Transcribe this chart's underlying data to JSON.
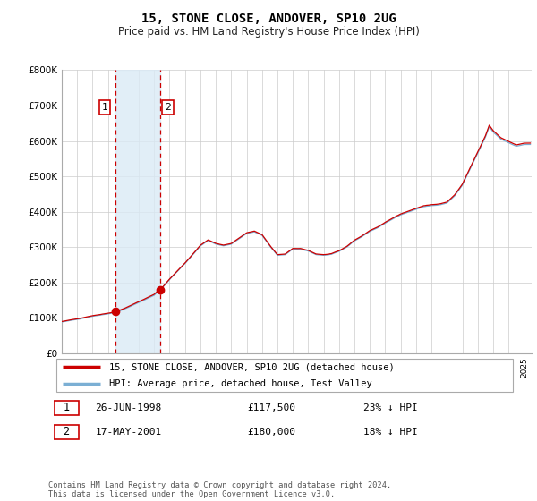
{
  "title": "15, STONE CLOSE, ANDOVER, SP10 2UG",
  "subtitle": "Price paid vs. HM Land Registry's House Price Index (HPI)",
  "title_fontsize": 10,
  "subtitle_fontsize": 8.5,
  "ylabel_ticks": [
    "£0",
    "£100K",
    "£200K",
    "£300K",
    "£400K",
    "£500K",
    "£600K",
    "£700K",
    "£800K"
  ],
  "ytick_vals": [
    0,
    100000,
    200000,
    300000,
    400000,
    500000,
    600000,
    700000,
    800000
  ],
  "ylim": [
    0,
    800000
  ],
  "xlim_start": 1995.0,
  "xlim_end": 2025.5,
  "legend_line1": "15, STONE CLOSE, ANDOVER, SP10 2UG (detached house)",
  "legend_line2": "HPI: Average price, detached house, Test Valley",
  "sale1_date": "26-JUN-1998",
  "sale1_price": "£117,500",
  "sale1_pct": "23% ↓ HPI",
  "sale2_date": "17-MAY-2001",
  "sale2_price": "£180,000",
  "sale2_pct": "18% ↓ HPI",
  "footnote": "Contains HM Land Registry data © Crown copyright and database right 2024.\nThis data is licensed under the Open Government Licence v3.0.",
  "line_color_price": "#cc0000",
  "line_color_hpi": "#7bafd4",
  "shading_color": "#daeaf5",
  "sale_marker_color": "#cc0000",
  "sale1_x": 1998.49,
  "sale1_y": 117500,
  "sale2_x": 2001.38,
  "sale2_y": 180000,
  "background_color": "#ffffff",
  "grid_color": "#cccccc"
}
